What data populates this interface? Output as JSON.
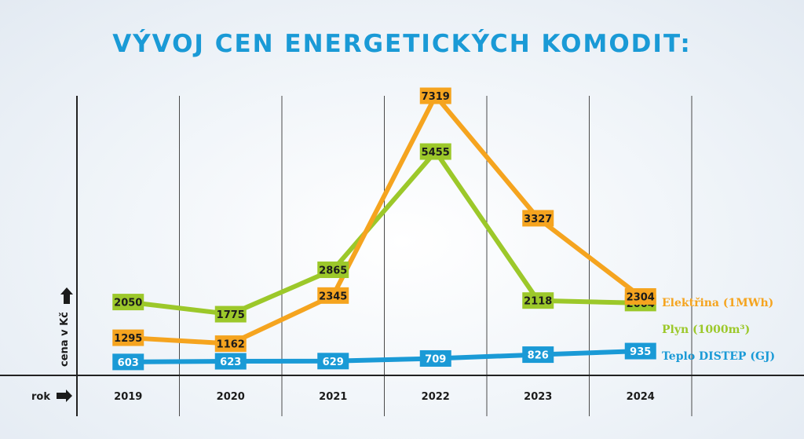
{
  "title": "VÝVOJ CEN ENERGETICKÝCH KOMODIT:",
  "colors": {
    "elektrina": "#f5a41f",
    "plyn": "#9cc82a",
    "teplo": "#1a9ad6",
    "title": "#1a9ad6",
    "grid": "#3a3a3a"
  },
  "chart_data": {
    "type": "line",
    "title": "VÝVOJ CEN ENERGETICKÝCH KOMODIT:",
    "xlabel": "rok",
    "ylabel": "cena v Kč",
    "categories": [
      "2019",
      "2020",
      "2021",
      "2022",
      "2023",
      "2024"
    ],
    "grid": "vertical",
    "legend_placement": "right",
    "series": [
      {
        "name": "Elektřina (1MWh)",
        "color": "#f5a41f",
        "values": [
          1295,
          1162,
          2345,
          7319,
          3327,
          2304
        ]
      },
      {
        "name": "Plyn (1000m³)",
        "color": "#9cc82a",
        "values": [
          2050,
          1775,
          2865,
          5455,
          2118,
          2004
        ]
      },
      {
        "name": "Teplo DISTEP (GJ)",
        "color": "#1a9ad6",
        "values": [
          603,
          623,
          629,
          709,
          826,
          935
        ]
      }
    ]
  }
}
